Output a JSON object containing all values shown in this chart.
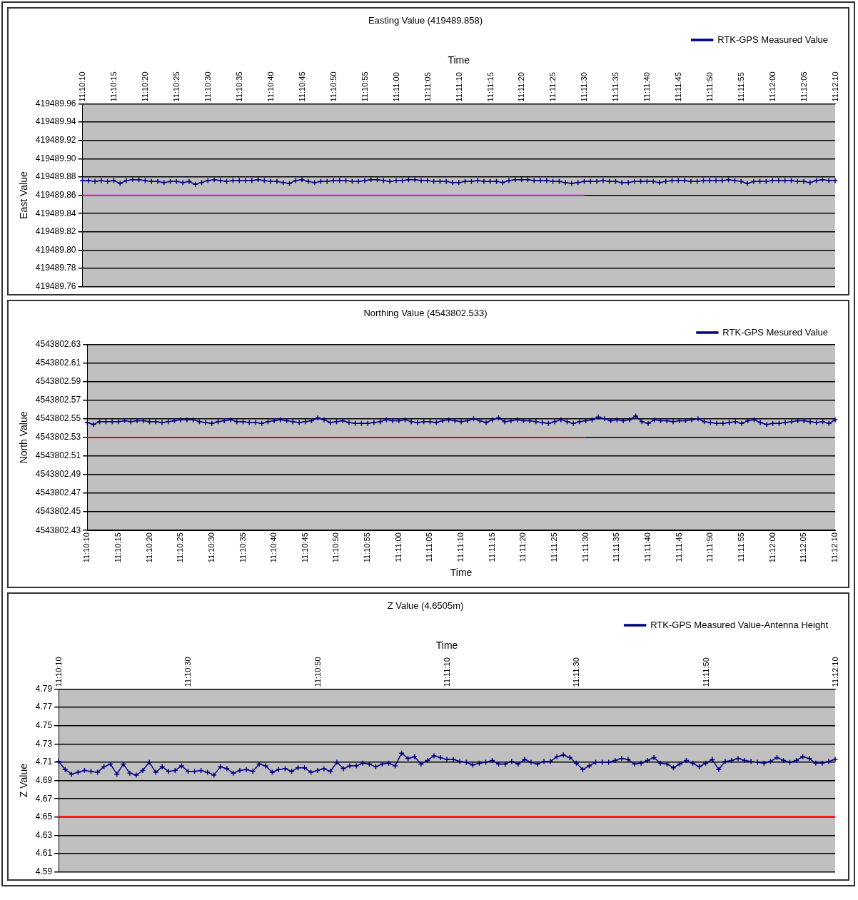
{
  "chart_data": [
    {
      "type": "line",
      "title": "Easting Value (419489.858)",
      "xlabel": "Time",
      "ylabel": "East Value",
      "legend": "top right",
      "grid": "y",
      "marker": "cross",
      "categories": [
        "11:10:10",
        null,
        null,
        null,
        null,
        "11:10:15",
        null,
        null,
        null,
        null,
        "11:10:20",
        null,
        null,
        null,
        null,
        "11:10:25",
        null,
        null,
        null,
        null,
        "11:10:30",
        null,
        null,
        null,
        null,
        "11:10:35",
        null,
        null,
        null,
        null,
        "11:10:40",
        null,
        null,
        null,
        null,
        "11:10:45",
        null,
        null,
        null,
        null,
        "11:10:50",
        null,
        null,
        null,
        null,
        "11:10:55",
        null,
        null,
        null,
        null,
        "11:11:00",
        null,
        null,
        null,
        null,
        "11:11:05",
        null,
        null,
        null,
        null,
        "11:11:10",
        null,
        null,
        null,
        null,
        "11:11:15",
        null,
        null,
        null,
        null,
        "11:11:20",
        null,
        null,
        null,
        null,
        "11:11:25",
        null,
        null,
        null,
        null,
        "11:11:30",
        null,
        null,
        null,
        null,
        "11:11:35",
        null,
        null,
        null,
        null,
        "11:11:40",
        null,
        null,
        null,
        null,
        "11:11:45",
        null,
        null,
        null,
        null,
        "11:11:50",
        null,
        null,
        null,
        null,
        "11:11:55",
        null,
        null,
        null,
        null,
        "11:12:00",
        null,
        null,
        null,
        null,
        "11:12:05",
        null,
        null,
        null,
        null,
        "11:12:10"
      ],
      "ylim": [
        419489.76,
        419489.96
      ],
      "yticks": [
        419489.96,
        419489.94,
        419489.92,
        {
          "value": 419489.9,
          "label": "419489.90"
        },
        419489.88,
        419489.86,
        419489.84,
        419489.82,
        {
          "value": 419489.8,
          "label": "419489.80"
        },
        419489.78,
        419489.76
      ],
      "series": [
        {
          "name": "RTK-GPS Measured Value",
          "color": "#000080",
          "values": [
            419489.876,
            419489.876,
            419489.875,
            419489.876,
            419489.875,
            419489.876,
            419489.873,
            419489.876,
            419489.877,
            419489.877,
            419489.876,
            419489.875,
            419489.875,
            419489.874,
            419489.875,
            419489.875,
            419489.874,
            419489.875,
            419489.872,
            419489.874,
            419489.876,
            419489.877,
            419489.876,
            419489.875,
            419489.876,
            419489.876,
            419489.876,
            419489.876,
            419489.877,
            419489.876,
            419489.875,
            419489.875,
            419489.874,
            419489.873,
            419489.876,
            419489.877,
            419489.875,
            419489.874,
            419489.875,
            419489.875,
            419489.876,
            419489.876,
            419489.876,
            419489.875,
            419489.875,
            419489.876,
            419489.877,
            419489.877,
            419489.876,
            419489.875,
            419489.876,
            419489.876,
            419489.877,
            419489.877,
            419489.876,
            419489.876,
            419489.875,
            419489.875,
            419489.875,
            419489.874,
            419489.874,
            419489.875,
            419489.875,
            419489.876,
            419489.875,
            419489.875,
            419489.875,
            419489.874,
            419489.876,
            419489.877,
            419489.877,
            419489.877,
            419489.876,
            419489.876,
            419489.876,
            419489.875,
            419489.875,
            419489.874,
            419489.873,
            419489.874,
            419489.875,
            419489.875,
            419489.875,
            419489.876,
            419489.875,
            419489.875,
            419489.874,
            419489.874,
            419489.875,
            419489.875,
            419489.875,
            419489.875,
            419489.874,
            419489.875,
            419489.876,
            419489.876,
            419489.876,
            419489.875,
            419489.875,
            419489.876,
            419489.876,
            419489.876,
            419489.876,
            419489.877,
            419489.876,
            419489.875,
            419489.873,
            419489.875,
            419489.875,
            419489.875,
            419489.876,
            419489.876,
            419489.876,
            419489.876,
            419489.875,
            419489.875,
            419489.874,
            419489.876,
            419489.877,
            419489.876,
            419489.876
          ]
        },
        {
          "color": "#ff00ff",
          "marker": "none",
          "values": [
            419489.86,
            419489.86,
            419489.86,
            419489.86,
            419489.86,
            419489.86,
            419489.86,
            419489.86,
            419489.86,
            419489.86,
            419489.86,
            419489.86,
            419489.86,
            419489.86,
            419489.86,
            419489.86,
            419489.86,
            419489.86,
            419489.86,
            419489.86,
            419489.86,
            419489.86,
            419489.86,
            419489.86,
            419489.86,
            419489.86,
            419489.86,
            419489.86,
            419489.86,
            419489.86,
            419489.86,
            419489.86,
            419489.86,
            419489.86,
            419489.86,
            419489.86,
            419489.86,
            419489.86,
            419489.86,
            419489.86,
            419489.86,
            419489.86,
            419489.86,
            419489.86,
            419489.86,
            419489.86,
            419489.86,
            419489.86,
            419489.86,
            419489.86,
            419489.86,
            419489.86,
            419489.86,
            419489.86,
            419489.86,
            419489.86,
            419489.86,
            419489.86,
            419489.86,
            419489.86,
            419489.86,
            419489.86,
            419489.86,
            419489.86,
            419489.86,
            419489.86,
            419489.86,
            419489.86,
            419489.86,
            419489.86,
            419489.86,
            419489.86,
            419489.86,
            419489.86,
            419489.86,
            419489.86,
            419489.86,
            419489.86,
            419489.86,
            419489.86,
            419489.86,
            null,
            null,
            null,
            null,
            null,
            null,
            null,
            null,
            null,
            null,
            null,
            null,
            null,
            null,
            null,
            null,
            null,
            null,
            null,
            null,
            null,
            null,
            null,
            null,
            null,
            null,
            null,
            null,
            null,
            null,
            null,
            null,
            null,
            null,
            null,
            null,
            null,
            null,
            null,
            null
          ]
        }
      ]
    },
    {
      "type": "line",
      "title": "Northing Value (4543802.533)",
      "xlabel": "Time",
      "ylabel": "North Value",
      "legend": "top right",
      "grid": "y",
      "marker": "cross",
      "categories": [
        "11:10:10",
        null,
        null,
        null,
        null,
        "11:10:15",
        null,
        null,
        null,
        null,
        "11:10:20",
        null,
        null,
        null,
        null,
        "11:10:25",
        null,
        null,
        null,
        null,
        "11:10:30",
        null,
        null,
        null,
        null,
        "11:10:35",
        null,
        null,
        null,
        null,
        "11:10:40",
        null,
        null,
        null,
        null,
        "11:10:45",
        null,
        null,
        null,
        null,
        "11:10:50",
        null,
        null,
        null,
        null,
        "11:10:55",
        null,
        null,
        null,
        null,
        "11:11:00",
        null,
        null,
        null,
        null,
        "11:11:05",
        null,
        null,
        null,
        null,
        "11:11:10",
        null,
        null,
        null,
        null,
        "11:11:15",
        null,
        null,
        null,
        null,
        "11:11:20",
        null,
        null,
        null,
        null,
        "11:11:25",
        null,
        null,
        null,
        null,
        "11:11:30",
        null,
        null,
        null,
        null,
        "11:11:35",
        null,
        null,
        null,
        null,
        "11:11:40",
        null,
        null,
        null,
        null,
        "11:11:45",
        null,
        null,
        null,
        null,
        "11:11:50",
        null,
        null,
        null,
        null,
        "11:11:55",
        null,
        null,
        null,
        null,
        "11:12:00",
        null,
        null,
        null,
        null,
        "11:12:05",
        null,
        null,
        null,
        null,
        "11:12:10"
      ],
      "ylim": [
        4543802.43,
        4543802.63
      ],
      "yticks": [
        4543802.63,
        4543802.61,
        4543802.59,
        4543802.57,
        4543802.55,
        4543802.53,
        4543802.51,
        4543802.49,
        4543802.47,
        4543802.45,
        4543802.43
      ],
      "series": [
        {
          "name": "RTK-GPS Mesured Value",
          "color": "#000080",
          "values": [
            4543802.546,
            4543802.544,
            4543802.547,
            4543802.547,
            4543802.547,
            4543802.547,
            4543802.548,
            4543802.547,
            4543802.548,
            4543802.548,
            4543802.547,
            4543802.547,
            4543802.546,
            4543802.547,
            4543802.548,
            4543802.549,
            4543802.549,
            4543802.549,
            4543802.547,
            4543802.546,
            4543802.545,
            4543802.547,
            4543802.548,
            4543802.549,
            4543802.547,
            4543802.547,
            4543802.546,
            4543802.546,
            4543802.545,
            4543802.547,
            4543802.548,
            4543802.549,
            4543802.548,
            4543802.547,
            4543802.546,
            4543802.547,
            4543802.548,
            4543802.551,
            4543802.549,
            4543802.546,
            4543802.547,
            4543802.548,
            4543802.546,
            4543802.545,
            4543802.545,
            4543802.545,
            4543802.546,
            4543802.547,
            4543802.549,
            4543802.548,
            4543802.548,
            4543802.549,
            4543802.547,
            4543802.546,
            4543802.547,
            4543802.547,
            4543802.546,
            4543802.548,
            4543802.549,
            4543802.548,
            4543802.547,
            4543802.548,
            4543802.55,
            4543802.548,
            4543802.546,
            4543802.549,
            4543802.551,
            4543802.547,
            4543802.548,
            4543802.549,
            4543802.548,
            4543802.548,
            4543802.547,
            4543802.546,
            4543802.545,
            4543802.547,
            4543802.549,
            4543802.547,
            4543802.545,
            4543802.547,
            4543802.548,
            4543802.549,
            4543802.552,
            4543802.55,
            4543802.548,
            4543802.549,
            4543802.548,
            4543802.549,
            4543802.553,
            4543802.547,
            4543802.545,
            4543802.549,
            4543802.548,
            4543802.548,
            4543802.547,
            4543802.548,
            4543802.548,
            4543802.549,
            4543802.55,
            4543802.547,
            4543802.546,
            4543802.545,
            4543802.545,
            4543802.546,
            4543802.547,
            4543802.545,
            4543802.548,
            4543802.549,
            4543802.546,
            4543802.544,
            4543802.545,
            4543802.545,
            4543802.546,
            4543802.547,
            4543802.548,
            4543802.548,
            4543802.547,
            4543802.546,
            4543802.547,
            4543802.545,
            4543802.549
          ]
        },
        {
          "color": "#ff0000",
          "marker": "none",
          "values": [
            4543802.53,
            4543802.53,
            4543802.53,
            4543802.53,
            4543802.53,
            4543802.53,
            4543802.53,
            4543802.53,
            4543802.53,
            4543802.53,
            4543802.53,
            4543802.53,
            4543802.53,
            4543802.53,
            4543802.53,
            4543802.53,
            4543802.53,
            4543802.53,
            4543802.53,
            4543802.53,
            4543802.53,
            4543802.53,
            4543802.53,
            4543802.53,
            4543802.53,
            4543802.53,
            4543802.53,
            4543802.53,
            4543802.53,
            4543802.53,
            4543802.53,
            4543802.53,
            4543802.53,
            4543802.53,
            4543802.53,
            4543802.53,
            4543802.53,
            4543802.53,
            4543802.53,
            4543802.53,
            4543802.53,
            4543802.53,
            4543802.53,
            4543802.53,
            4543802.53,
            4543802.53,
            4543802.53,
            4543802.53,
            4543802.53,
            4543802.53,
            4543802.53,
            4543802.53,
            4543802.53,
            4543802.53,
            4543802.53,
            4543802.53,
            4543802.53,
            4543802.53,
            4543802.53,
            4543802.53,
            4543802.53,
            4543802.53,
            4543802.53,
            4543802.53,
            4543802.53,
            4543802.53,
            4543802.53,
            4543802.53,
            4543802.53,
            4543802.53,
            4543802.53,
            4543802.53,
            4543802.53,
            4543802.53,
            4543802.53,
            4543802.53,
            4543802.53,
            4543802.53,
            4543802.53,
            4543802.53,
            4543802.53,
            null,
            null,
            null,
            null,
            null,
            null,
            null,
            null,
            null,
            null,
            null,
            null,
            null,
            null,
            null,
            null,
            null,
            null,
            null,
            null,
            null,
            null,
            null,
            null,
            null,
            null,
            null,
            null,
            null,
            null,
            null,
            null,
            null,
            null,
            null,
            null,
            null,
            null,
            null,
            null
          ]
        }
      ]
    },
    {
      "type": "line",
      "title": "Z Value (4.6505m)",
      "xlabel": "Time",
      "ylabel": "Z Value",
      "legend": "top right",
      "grid": "y",
      "marker": "cross",
      "categories": [
        "11:10:10",
        null,
        null,
        null,
        null,
        null,
        null,
        null,
        null,
        null,
        null,
        null,
        null,
        null,
        null,
        null,
        null,
        null,
        null,
        null,
        "11:10:30",
        null,
        null,
        null,
        null,
        null,
        null,
        null,
        null,
        null,
        null,
        null,
        null,
        null,
        null,
        null,
        null,
        null,
        null,
        null,
        "11:10:50",
        null,
        null,
        null,
        null,
        null,
        null,
        null,
        null,
        null,
        null,
        null,
        null,
        null,
        null,
        null,
        null,
        null,
        null,
        null,
        "11:11:10",
        null,
        null,
        null,
        null,
        null,
        null,
        null,
        null,
        null,
        null,
        null,
        null,
        null,
        null,
        null,
        null,
        null,
        null,
        null,
        "11:11:30",
        null,
        null,
        null,
        null,
        null,
        null,
        null,
        null,
        null,
        null,
        null,
        null,
        null,
        null,
        null,
        null,
        null,
        null,
        null,
        "11:11:50",
        null,
        null,
        null,
        null,
        null,
        null,
        null,
        null,
        null,
        null,
        null,
        null,
        null,
        null,
        null,
        null,
        null,
        null,
        null,
        "11:12:10"
      ],
      "ylim": [
        4.59,
        4.79
      ],
      "yticks": [
        4.79,
        4.77,
        4.75,
        4.73,
        4.71,
        4.69,
        4.67,
        4.65,
        4.63,
        4.61,
        4.59
      ],
      "ref_lines": [
        {
          "axis": "y",
          "value": 4.6505,
          "color": "#ff0000"
        }
      ],
      "series": [
        {
          "name": "RTK-GPS Measured Value-Antenna Height",
          "color": "#000080",
          "values": [
            4.711,
            4.702,
            4.697,
            4.699,
            4.701,
            4.7,
            4.699,
            4.705,
            4.708,
            4.697,
            4.708,
            4.698,
            4.696,
            4.701,
            4.71,
            4.699,
            4.705,
            4.7,
            4.701,
            4.706,
            4.7,
            4.7,
            4.701,
            4.699,
            4.696,
            4.705,
            4.703,
            4.698,
            4.701,
            4.702,
            4.7,
            4.708,
            4.706,
            4.699,
            4.702,
            4.703,
            4.7,
            4.704,
            4.704,
            4.699,
            4.701,
            4.703,
            4.7,
            4.71,
            4.703,
            4.706,
            4.706,
            4.709,
            4.708,
            4.705,
            4.708,
            4.709,
            4.706,
            4.72,
            4.714,
            4.716,
            4.708,
            4.712,
            4.717,
            4.715,
            4.713,
            4.713,
            4.711,
            4.71,
            4.707,
            4.709,
            4.71,
            4.712,
            4.708,
            4.708,
            4.711,
            4.708,
            4.713,
            4.71,
            4.708,
            4.711,
            4.711,
            4.716,
            4.718,
            4.715,
            4.709,
            4.702,
            4.706,
            4.71,
            4.71,
            4.71,
            4.712,
            4.714,
            4.713,
            4.708,
            4.709,
            4.712,
            4.715,
            4.709,
            4.708,
            4.704,
            4.708,
            4.712,
            4.709,
            4.705,
            4.709,
            4.713,
            4.702,
            4.711,
            4.712,
            4.714,
            4.712,
            4.711,
            4.71,
            4.709,
            4.711,
            4.715,
            4.712,
            4.71,
            4.712,
            4.716,
            4.714,
            4.709,
            4.709,
            4.711,
            4.713
          ]
        }
      ]
    }
  ]
}
